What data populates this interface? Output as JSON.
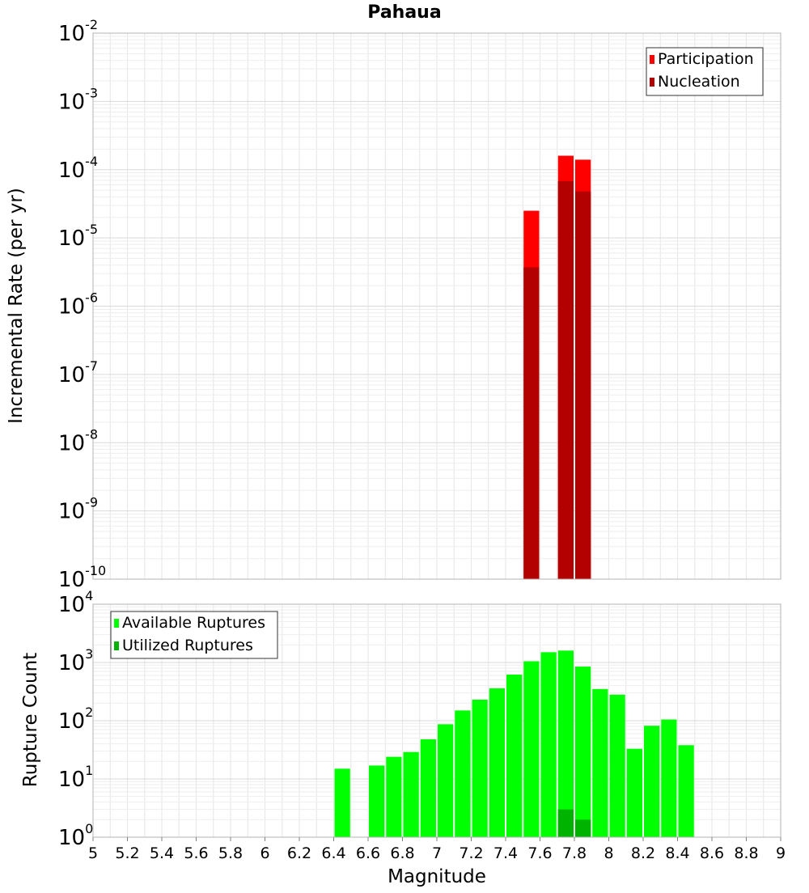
{
  "title": "Pahaua",
  "chart_data": [
    {
      "type": "bar",
      "log_y": true,
      "ylabel": "Incremental Rate (per yr)",
      "xlabel": "",
      "xlim": [
        5,
        9
      ],
      "ylim_exponents": [
        -10,
        -2
      ],
      "y_tick_labels": [
        {
          "base": "10",
          "exp": "-10"
        },
        {
          "base": "10",
          "exp": "-9"
        },
        {
          "base": "10",
          "exp": "-8"
        },
        {
          "base": "10",
          "exp": "-7"
        },
        {
          "base": "10",
          "exp": "-6"
        },
        {
          "base": "10",
          "exp": "-5"
        },
        {
          "base": "10",
          "exp": "-4"
        },
        {
          "base": "10",
          "exp": "-3"
        },
        {
          "base": "10",
          "exp": "-2"
        }
      ],
      "grid": true,
      "legend_position": "top-right",
      "bin_width": 0.1,
      "series": [
        {
          "name": "Participation",
          "color": "#ff0000",
          "points": [
            {
              "x": 7.55,
              "y": 2.5e-05
            },
            {
              "x": 7.75,
              "y": 0.00016
            },
            {
              "x": 7.85,
              "y": 0.00014
            }
          ]
        },
        {
          "name": "Nucleation",
          "color": "#b30000",
          "points": [
            {
              "x": 7.55,
              "y": 3.7e-06
            },
            {
              "x": 7.75,
              "y": 6.8e-05
            },
            {
              "x": 7.85,
              "y": 4.8e-05
            }
          ]
        }
      ]
    },
    {
      "type": "bar",
      "log_y": true,
      "ylabel": "Rupture Count",
      "xlabel": "Magnitude",
      "xlim": [
        5,
        9
      ],
      "ylim_exponents": [
        0,
        4
      ],
      "y_tick_labels": [
        {
          "base": "10",
          "exp": "0"
        },
        {
          "base": "10",
          "exp": "1"
        },
        {
          "base": "10",
          "exp": "2"
        },
        {
          "base": "10",
          "exp": "3"
        },
        {
          "base": "10",
          "exp": "4"
        }
      ],
      "x_ticks": [
        "5",
        "5.2",
        "5.4",
        "5.6",
        "5.8",
        "6",
        "6.2",
        "6.4",
        "6.6",
        "6.8",
        "7",
        "7.2",
        "7.4",
        "7.6",
        "7.8",
        "8",
        "8.2",
        "8.4",
        "8.6",
        "8.8",
        "9"
      ],
      "grid": true,
      "legend_position": "top-left",
      "bin_width": 0.1,
      "series": [
        {
          "name": "Available Ruptures",
          "color": "#00ff00",
          "points": [
            {
              "x": 6.45,
              "y": 15
            },
            {
              "x": 6.65,
              "y": 17
            },
            {
              "x": 6.75,
              "y": 24
            },
            {
              "x": 6.85,
              "y": 29
            },
            {
              "x": 6.95,
              "y": 48
            },
            {
              "x": 7.05,
              "y": 87
            },
            {
              "x": 7.15,
              "y": 150
            },
            {
              "x": 7.25,
              "y": 230
            },
            {
              "x": 7.35,
              "y": 360
            },
            {
              "x": 7.45,
              "y": 620
            },
            {
              "x": 7.55,
              "y": 1050
            },
            {
              "x": 7.65,
              "y": 1500
            },
            {
              "x": 7.75,
              "y": 1600
            },
            {
              "x": 7.85,
              "y": 850
            },
            {
              "x": 7.95,
              "y": 350
            },
            {
              "x": 8.05,
              "y": 280
            },
            {
              "x": 8.15,
              "y": 33
            },
            {
              "x": 8.25,
              "y": 82
            },
            {
              "x": 8.35,
              "y": 105
            },
            {
              "x": 8.45,
              "y": 38
            }
          ]
        },
        {
          "name": "Utilized Ruptures",
          "color": "#00b300",
          "points": [
            {
              "x": 7.55,
              "y": 1
            },
            {
              "x": 7.75,
              "y": 3
            },
            {
              "x": 7.85,
              "y": 2
            }
          ]
        }
      ]
    }
  ]
}
